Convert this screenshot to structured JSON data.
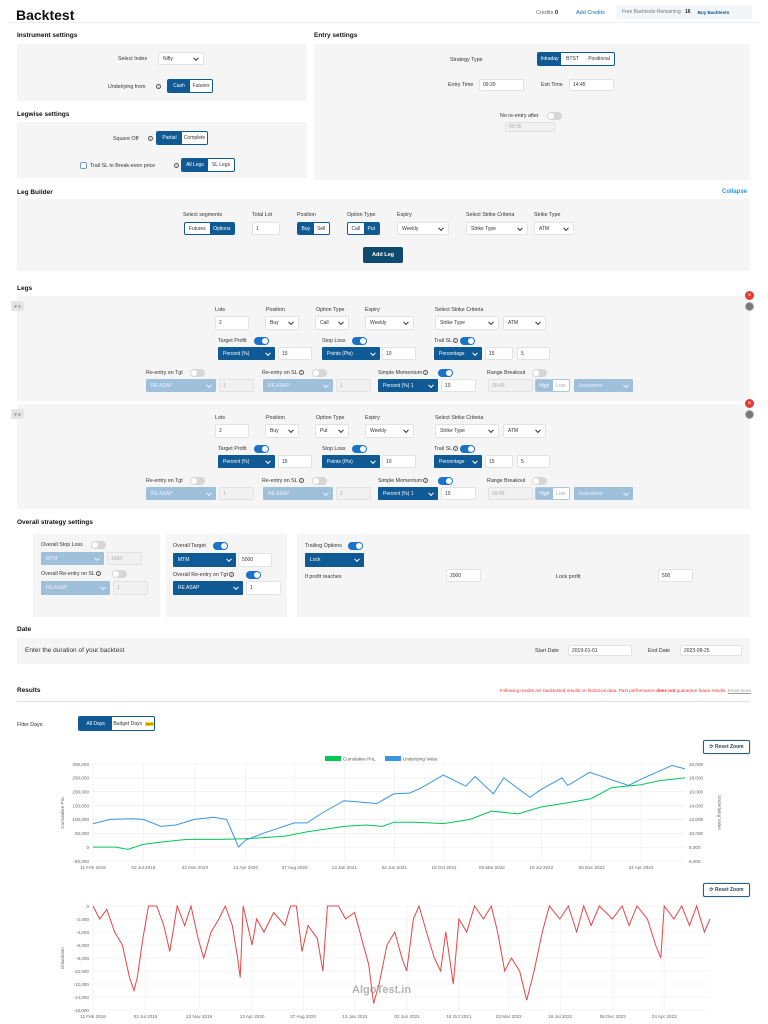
{
  "header": {
    "title": "Backtest",
    "credits_label": "Credits",
    "credits_value": "0",
    "add_credits": "Add Credits",
    "free_label": "Free Backtests Remaining:",
    "free_value": "16",
    "buy": "Buy Backtests"
  },
  "instrument": {
    "title": "Instrument settings",
    "select_index_label": "Select Index",
    "select_index_value": "Nifty",
    "underlying_label": "Underlying from",
    "underlying_options": [
      "Cash",
      "Futures"
    ],
    "underlying_selected": "Cash"
  },
  "legwise": {
    "title": "Legwise settings",
    "square_off_label": "Square Off",
    "square_off_options": [
      "Partial",
      "Complete"
    ],
    "square_off_selected": "Partial",
    "trail_label": "Trail SL to Break-even price",
    "trail_checked": false,
    "trail_options": [
      "All Legs",
      "SL Legs"
    ],
    "trail_selected": "All Legs"
  },
  "entry": {
    "title": "Entry settings",
    "strategy_type_label": "Strategy Type",
    "strategy_types": [
      "Intraday",
      "BTST",
      "Positional"
    ],
    "strategy_selected": "Intraday",
    "entry_time_label": "Entry Time",
    "entry_time": "09:20",
    "exit_time_label": "Exit Time",
    "exit_time": "14:45",
    "no_reentry_label": "No re-entry after",
    "no_reentry_on": false,
    "no_reentry_time": "09:05"
  },
  "leg_builder": {
    "title": "Leg Builder",
    "collapse": "Collapse",
    "segments_label": "Select segments",
    "segments": [
      "Futures",
      "Options"
    ],
    "segment_selected": "Options",
    "total_lot_label": "Total Lot",
    "total_lot": "1",
    "position_label": "Position",
    "positions": [
      "Buy",
      "Sell"
    ],
    "position_selected": "Buy",
    "option_type_label": "Option Type",
    "option_types": [
      "Call",
      "Put"
    ],
    "option_selected": "Put",
    "expiry_label": "Expiry",
    "expiry": "Weekly",
    "strike_criteria_label": "Select Strike Criteria",
    "strike_criteria": "Strike Type",
    "strike_type_label": "Strike Type",
    "strike_type": "ATM",
    "add_leg": "Add Leg"
  },
  "legs": {
    "title": "Legs",
    "labels": {
      "lots": "Lots",
      "position": "Position",
      "option_type": "Option Type",
      "expiry": "Expiry",
      "strike_criteria": "Select Strike Criteria",
      "target_profit": "Target Profit",
      "stop_loss": "Stop Loss",
      "trail_sl": "Trail SL",
      "reentry_tgt": "Re-entry on Tgt",
      "reentry_sl": "Re-entry on SL",
      "momentum": "Simple Momentum",
      "range": "Range Breakout",
      "high": "High",
      "low": "Low",
      "instrument": "Instrument"
    },
    "items": [
      {
        "id": "# 1",
        "lots": "2",
        "position": "Buy",
        "option_type": "Call",
        "expiry": "Weekly",
        "strike_criteria": "Strike Type",
        "strike": "ATM",
        "target_on": true,
        "target_type": "Percent (%)",
        "target_value": "15",
        "sl_on": true,
        "sl_type": "Points (Pts)",
        "sl_value": "10",
        "trail_on": true,
        "trail_type": "Percentage",
        "trail_x": "15",
        "trail_y": "5",
        "reentry_tgt_on": false,
        "reentry_tgt_type": "RE ASAP",
        "reentry_tgt_count": "1",
        "reentry_sl_on": false,
        "reentry_sl_type": "RE ASAP",
        "reentry_sl_count": "1",
        "momentum_on": true,
        "momentum_type": "Percent (%) 1",
        "momentum_value": "10",
        "range_on": false,
        "range_time": "09:45"
      },
      {
        "id": "# 2",
        "lots": "2",
        "position": "Buy",
        "option_type": "Put",
        "expiry": "Weekly",
        "strike_criteria": "Strike Type",
        "strike": "ATM",
        "target_on": true,
        "target_type": "Percent (%)",
        "target_value": "15",
        "sl_on": true,
        "sl_type": "Points (Pts)",
        "sl_value": "10",
        "trail_on": true,
        "trail_type": "Percentage",
        "trail_x": "15",
        "trail_y": "5",
        "reentry_tgt_on": false,
        "reentry_tgt_type": "RE ASAP",
        "reentry_tgt_count": "1",
        "reentry_sl_on": false,
        "reentry_sl_type": "RE ASAP",
        "reentry_sl_count": "1",
        "momentum_on": true,
        "momentum_type": "Percent (%) 1",
        "momentum_value": "10",
        "range_on": false,
        "range_time": "09:45"
      }
    ]
  },
  "overall": {
    "title": "Overall strategy settings",
    "sl_label": "Overall Stop Loss",
    "sl_on": false,
    "sl_type": "MTM",
    "sl_value": "1000",
    "reentry_sl_label": "Overall Re-entry on SL",
    "reentry_sl_on": false,
    "reentry_sl_type": "RE ASAP",
    "reentry_sl_count": "1",
    "target_label": "Overall Target",
    "target_on": true,
    "target_type": "MTM",
    "target_value": "5000",
    "reentry_tgt_label": "Overall Re-entry on Tgt",
    "reentry_tgt_on": true,
    "reentry_tgt_type": "RE ASAP",
    "reentry_tgt_count": "1",
    "trailing_label": "Trailing Options",
    "trailing_on": true,
    "trailing_type": "Lock",
    "profit_reaches_label": "If profit reaches",
    "profit_reaches": "2000",
    "lock_profit_label": "Lock profit",
    "lock_profit": "500"
  },
  "date": {
    "title": "Date",
    "prompt": "Enter the duration of your backtest",
    "start_label": "Start Date",
    "start": "2019-01-01",
    "end_label": "End Date",
    "end": "2023-08-25"
  },
  "results": {
    "title": "Results",
    "disclaimer_pre": "Following results are backtested results on historical data. Past performance ",
    "disclaimer_bold": "does not",
    "disclaimer_post": " guarantee future results.",
    "know_more": "Know more",
    "filter_label": "Filter Days:",
    "filter_options": [
      "All Days",
      "Budget Days"
    ],
    "filter_selected": "All Days",
    "new_badge": "NEW",
    "reset_zoom": "Reset Zoom",
    "watermark": "AlgoTest.in"
  },
  "colors": {
    "primary": "#0f5a94",
    "pnl": "#00c853",
    "underlying": "#3b96e0",
    "drawdown": "#e84545",
    "disclaimer": "#e53935"
  },
  "chart_data": [
    {
      "type": "line",
      "xlabel": "",
      "ylabel": "Cumulative PnL",
      "y2label": "Underlying Value",
      "legend": "top-center",
      "grid": true,
      "ylim": [
        -50000,
        300000
      ],
      "y2lim": [
        6000,
        20000
      ],
      "y_ticks": [
        "300,000",
        "250,000",
        "200,000",
        "150,000",
        "100,000",
        "50,000",
        "0",
        "-50,000"
      ],
      "y2_ticks": [
        "20,000",
        "18,000",
        "16,000",
        "14,000",
        "12,000",
        "10,000",
        "8,000",
        "6,000"
      ],
      "x_ticks": [
        "11 Feb 2019",
        "02 Jul 2019",
        "22 Nov 2019",
        "13 Apr 2020",
        "27 Aug 2020",
        "13 Jan 2021",
        "02 Jun 2021",
        "18 Oct 2021",
        "02 Mar 2022",
        "18 Jul 2022",
        "06 Dec 2022",
        "24 Apr 2023"
      ],
      "series": [
        {
          "name": "Cumulative PnL",
          "axis": "left",
          "x": [
            "2019-02-11",
            "2019-04-15",
            "2019-05-20",
            "2019-07-01",
            "2019-09-01",
            "2019-11-01",
            "2020-02-01",
            "2020-04-13",
            "2020-08-01",
            "2020-10-01",
            "2021-01-13",
            "2021-03-15",
            "2021-05-01",
            "2021-06-02",
            "2021-08-01",
            "2021-10-18",
            "2022-01-01",
            "2022-03-02",
            "2022-05-15",
            "2022-07-18",
            "2022-10-01",
            "2022-12-06",
            "2023-02-01",
            "2023-04-24",
            "2023-06-15",
            "2023-08-25"
          ],
          "y": [
            0,
            0,
            -8000,
            10000,
            20000,
            28000,
            28000,
            30000,
            40000,
            55000,
            75000,
            80000,
            75000,
            90000,
            90000,
            85000,
            100000,
            130000,
            120000,
            145000,
            160000,
            175000,
            215000,
            225000,
            240000,
            250000
          ]
        },
        {
          "name": "Underlying Value",
          "axis": "right",
          "x": [
            "2019-02-11",
            "2019-04-01",
            "2019-06-01",
            "2019-07-02",
            "2019-08-20",
            "2019-10-01",
            "2019-11-22",
            "2020-01-15",
            "2020-02-20",
            "2020-03-24",
            "2020-04-13",
            "2020-06-01",
            "2020-08-27",
            "2020-10-01",
            "2020-11-15",
            "2021-01-13",
            "2021-03-01",
            "2021-04-15",
            "2021-06-02",
            "2021-07-15",
            "2021-08-15",
            "2021-10-18",
            "2021-12-20",
            "2022-01-15",
            "2022-03-07",
            "2022-04-05",
            "2022-06-17",
            "2022-07-18",
            "2022-09-15",
            "2022-10-01",
            "2022-12-01",
            "2023-03-20",
            "2023-04-24",
            "2023-07-20",
            "2023-08-25"
          ],
          "y": [
            11400,
            12000,
            12100,
            12000,
            11000,
            11200,
            12000,
            12300,
            12000,
            8000,
            9000,
            10000,
            11500,
            11500,
            13000,
            14700,
            14500,
            14300,
            15700,
            15800,
            16500,
            18400,
            16800,
            18200,
            15700,
            18000,
            15200,
            16300,
            18000,
            16900,
            18800,
            16900,
            17800,
            19800,
            19300
          ]
        }
      ]
    },
    {
      "type": "line",
      "xlabel": "",
      "ylabel": "Drawdown",
      "grid": true,
      "ylim": [
        -16000,
        0
      ],
      "y_ticks": [
        "0",
        "-2,000",
        "-4,000",
        "-6,000",
        "-8,000",
        "-10,000",
        "-12,000",
        "-14,000",
        "-16,000"
      ],
      "x_ticks": [
        "11 Feb 2019",
        "02 Jul 2019",
        "22 Nov 2019",
        "13 Apr 2020",
        "27 Aug 2020",
        "13 Jan 2021",
        "02 Jun 2021",
        "18 Oct 2021",
        "02 Mar 2022",
        "18 Jul 2022",
        "06 Dec 2022",
        "24 Apr 2023"
      ],
      "series": [
        {
          "name": "Drawdown",
          "x": [
            "2019-02-11",
            "2019-03-01",
            "2019-03-20",
            "2019-04-10",
            "2019-05-01",
            "2019-05-20",
            "2019-06-01",
            "2019-06-10",
            "2019-06-25",
            "2019-07-10",
            "2019-08-01",
            "2019-08-20",
            "2019-09-05",
            "2019-09-25",
            "2019-10-15",
            "2019-11-01",
            "2019-11-20",
            "2019-12-05",
            "2019-12-25",
            "2020-01-15",
            "2020-02-01",
            "2020-02-20",
            "2020-03-05",
            "2020-03-12",
            "2020-03-20",
            "2020-04-13",
            "2020-04-25",
            "2020-05-15",
            "2020-06-10",
            "2020-07-10",
            "2020-07-25",
            "2020-08-10",
            "2020-08-25",
            "2020-09-10",
            "2020-10-05",
            "2020-10-20",
            "2020-11-01",
            "2020-12-01",
            "2020-12-20",
            "2021-01-13",
            "2021-02-01",
            "2021-02-20",
            "2021-03-05",
            "2021-03-20",
            "2021-04-10",
            "2021-05-01",
            "2021-05-20",
            "2021-06-02",
            "2021-06-20",
            "2021-07-05",
            "2021-07-25",
            "2021-08-15",
            "2021-09-01",
            "2021-09-15",
            "2021-10-05",
            "2021-10-20",
            "2021-11-10",
            "2021-12-01",
            "2021-12-25",
            "2022-01-15",
            "2022-02-01",
            "2022-02-20",
            "2022-03-10",
            "2022-04-01",
            "2022-04-20",
            "2022-05-10",
            "2022-06-01",
            "2022-06-20",
            "2022-07-18",
            "2022-08-10",
            "2022-09-01",
            "2022-09-20",
            "2022-10-10",
            "2022-11-01",
            "2022-12-06",
            "2023-01-01",
            "2023-01-20",
            "2023-02-10",
            "2023-03-10",
            "2023-04-01",
            "2023-04-15",
            "2023-04-24",
            "2023-05-20",
            "2023-06-10",
            "2023-07-01",
            "2023-07-20",
            "2023-08-10",
            "2023-08-25"
          ],
          "y": [
            0,
            -2000,
            -500,
            -4000,
            -6000,
            -11000,
            -13000,
            -11000,
            -5000,
            0,
            0,
            -3000,
            -7000,
            0,
            -3000,
            0,
            -5000,
            -8000,
            -4000,
            -2000,
            0,
            -3000,
            -8000,
            -11000,
            0,
            -6000,
            -2000,
            -4000,
            -1000,
            -3000,
            0,
            0,
            -7000,
            -3000,
            -5000,
            -10000,
            0,
            0,
            -2000,
            -1000,
            -5000,
            -9000,
            -15000,
            -12000,
            -6000,
            -4000,
            -8000,
            -10000,
            -2000,
            0,
            -4000,
            -8000,
            -10000,
            -4000,
            -12000,
            -2000,
            -4000,
            0,
            -2000,
            0,
            -4000,
            -10000,
            -8000,
            -10000,
            -14500,
            -10000,
            -4000,
            0,
            -2000,
            0,
            -4000,
            0,
            -3000,
            0,
            -2000,
            0,
            -3000,
            0,
            -2000,
            -6000,
            -8000,
            0,
            -2000,
            0,
            -3000,
            0,
            -4000,
            -2000
          ]
        }
      ]
    }
  ]
}
